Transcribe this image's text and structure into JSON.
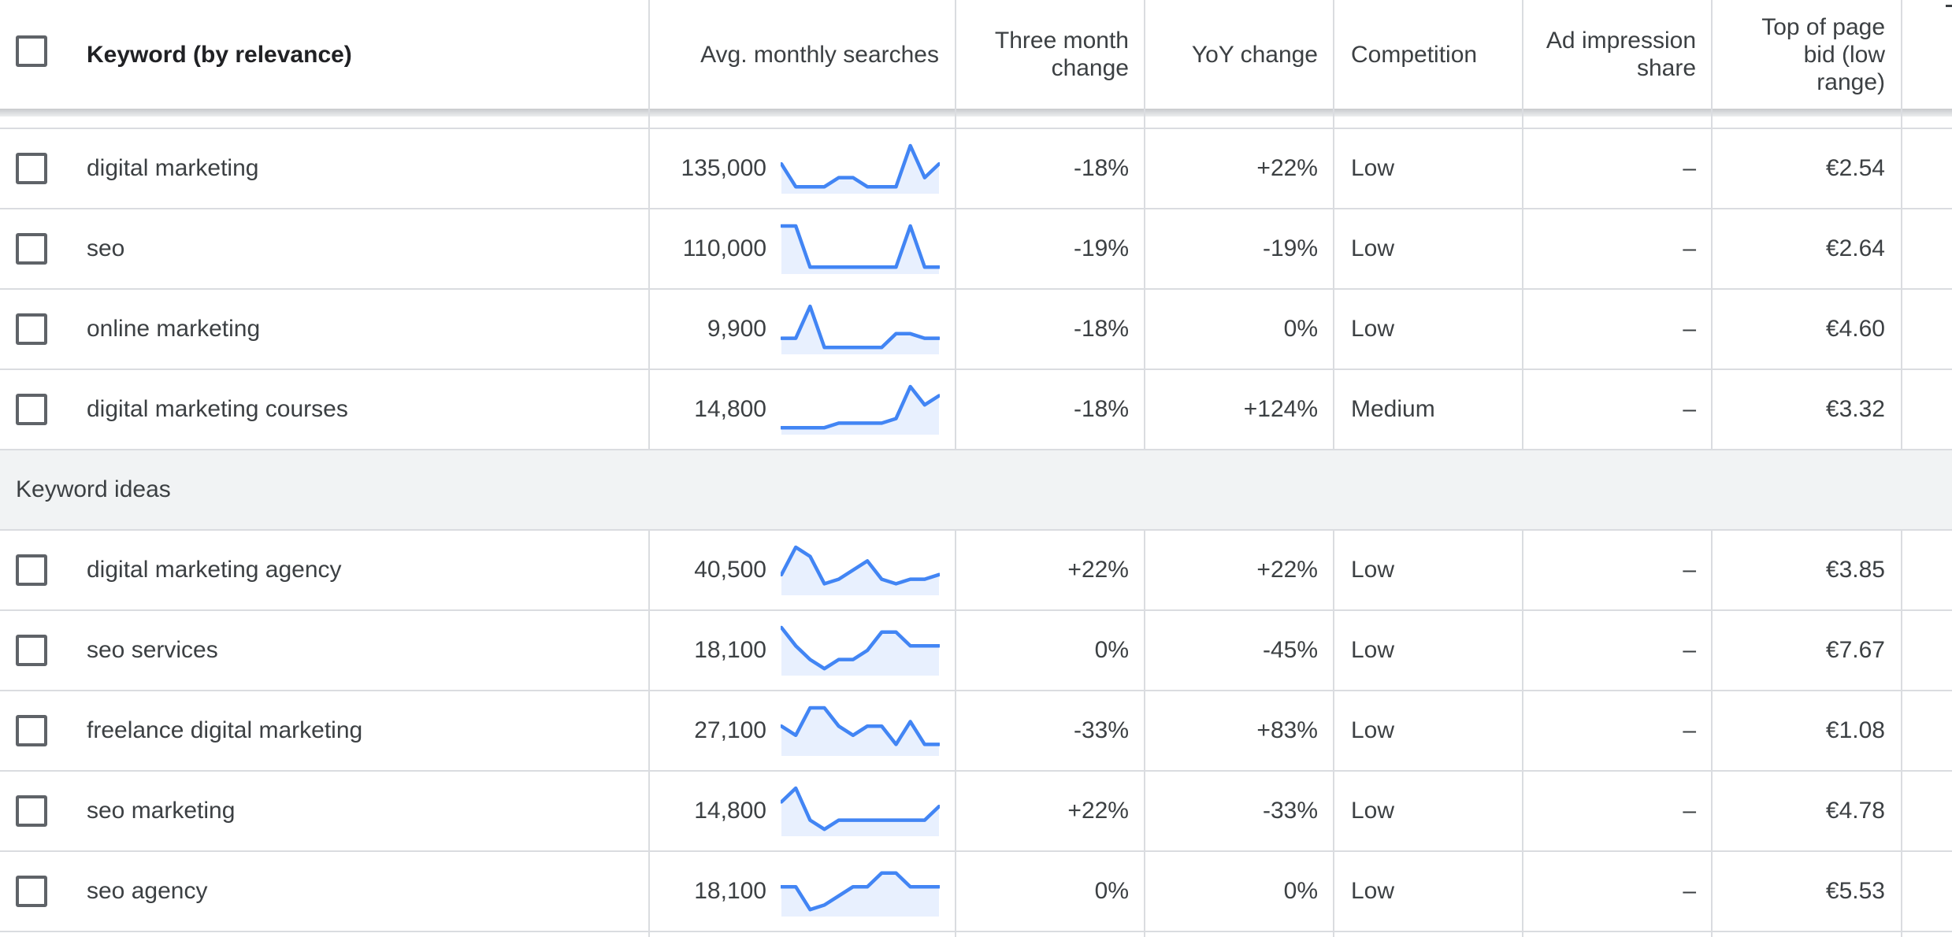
{
  "header": {
    "keyword": "Keyword (by relevance)",
    "avg_monthly": "Avg. monthly searches",
    "three_month": [
      "Three month",
      "change"
    ],
    "yoy": "YoY change",
    "competition": "Competition",
    "ad_impression": [
      "Ad impression",
      "share"
    ],
    "top_bid_low": [
      "Top of page",
      "bid (low",
      "range)"
    ]
  },
  "section_label": "Keyword ideas",
  "rows": [
    {
      "keyword": "digital marketing",
      "avg": "135,000",
      "three_month": "-18%",
      "yoy": "+22%",
      "competition": "Low",
      "ad_share": "–",
      "bid_low": "€2.54",
      "trend": [
        6,
        1,
        1,
        1,
        3,
        3,
        1,
        1,
        1,
        10,
        3,
        6
      ]
    },
    {
      "keyword": "seo",
      "avg": "110,000",
      "three_month": "-19%",
      "yoy": "-19%",
      "competition": "Low",
      "ad_share": "–",
      "bid_low": "€2.64",
      "trend": [
        10,
        10,
        1,
        1,
        1,
        1,
        1,
        1,
        1,
        10,
        1,
        1
      ]
    },
    {
      "keyword": "online marketing",
      "avg": "9,900",
      "three_month": "-18%",
      "yoy": "0%",
      "competition": "Low",
      "ad_share": "–",
      "bid_low": "€4.60",
      "trend": [
        3,
        3,
        10,
        1,
        1,
        1,
        1,
        1,
        4,
        4,
        3,
        3
      ]
    },
    {
      "keyword": "digital marketing courses",
      "avg": "14,800",
      "three_month": "-18%",
      "yoy": "+124%",
      "competition": "Medium",
      "ad_share": "–",
      "bid_low": "€3.32",
      "trend": [
        1,
        1,
        1,
        1,
        2,
        2,
        2,
        2,
        3,
        10,
        6,
        8
      ]
    },
    {
      "keyword": "digital marketing agency",
      "avg": "40,500",
      "three_month": "+22%",
      "yoy": "+22%",
      "competition": "Low",
      "ad_share": "–",
      "bid_low": "€3.85",
      "trend": [
        4,
        10,
        8,
        2,
        3,
        5,
        7,
        3,
        2,
        3,
        3,
        4
      ]
    },
    {
      "keyword": "seo services",
      "avg": "18,100",
      "three_month": "0%",
      "yoy": "-45%",
      "competition": "Low",
      "ad_share": "–",
      "bid_low": "€7.67",
      "trend": [
        10,
        6,
        3,
        1,
        3,
        3,
        5,
        9,
        9,
        6,
        6,
        6
      ]
    },
    {
      "keyword": "freelance digital marketing",
      "avg": "27,100",
      "three_month": "-33%",
      "yoy": "+83%",
      "competition": "Low",
      "ad_share": "–",
      "bid_low": "€1.08",
      "trend": [
        6,
        4,
        10,
        10,
        6,
        4,
        6,
        6,
        2,
        7,
        2,
        2
      ]
    },
    {
      "keyword": "seo marketing",
      "avg": "14,800",
      "three_month": "+22%",
      "yoy": "-33%",
      "competition": "Low",
      "ad_share": "–",
      "bid_low": "€4.78",
      "trend": [
        7,
        10,
        3,
        1,
        3,
        3,
        3,
        3,
        3,
        3,
        3,
        6
      ]
    },
    {
      "keyword": "seo agency",
      "avg": "18,100",
      "three_month": "0%",
      "yoy": "0%",
      "competition": "Low",
      "ad_share": "–",
      "bid_low": "€5.53",
      "trend": [
        6,
        6,
        1,
        2,
        4,
        6,
        6,
        9,
        9,
        6,
        6,
        6
      ]
    }
  ]
}
